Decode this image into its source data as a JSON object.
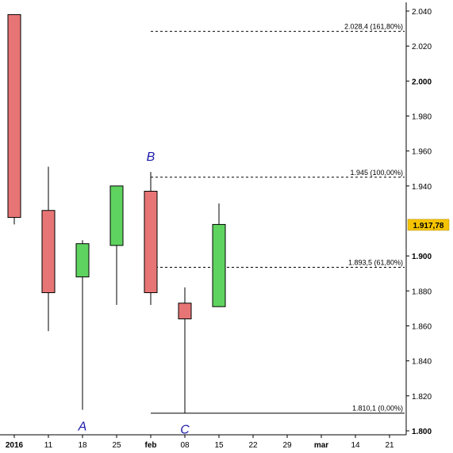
{
  "chart_data": {
    "type": "candlestick",
    "title": "",
    "xlabel": "",
    "ylabel": "",
    "ylim": [
      1.795,
      2.045
    ],
    "grid": false,
    "y_ticks": [
      {
        "value": 2.04,
        "label": "2.040"
      },
      {
        "value": 2.02,
        "label": "2.020"
      },
      {
        "value": 2.0,
        "label": "2.000"
      },
      {
        "value": 1.98,
        "label": "1.980"
      },
      {
        "value": 1.96,
        "label": "1.960"
      },
      {
        "value": 1.94,
        "label": "1.940"
      },
      {
        "value": 1.9,
        "label": "1.900"
      },
      {
        "value": 1.88,
        "label": "1.880"
      },
      {
        "value": 1.86,
        "label": "1.860"
      },
      {
        "value": 1.84,
        "label": "1.840"
      },
      {
        "value": 1.82,
        "label": "1.820"
      },
      {
        "value": 1.8,
        "label": "1.800"
      }
    ],
    "x_ticks": [
      {
        "index": 0,
        "label": "2016",
        "bold": true
      },
      {
        "index": 1,
        "label": "11",
        "bold": false
      },
      {
        "index": 2,
        "label": "18",
        "bold": false
      },
      {
        "index": 3,
        "label": "25",
        "bold": false
      },
      {
        "index": 4,
        "label": "feb",
        "bold": true
      },
      {
        "index": 5,
        "label": "08",
        "bold": false
      },
      {
        "index": 6,
        "label": "15",
        "bold": false
      },
      {
        "index": 7,
        "label": "22",
        "bold": false
      },
      {
        "index": 8,
        "label": "29",
        "bold": false
      },
      {
        "index": 9,
        "label": "mar",
        "bold": true
      },
      {
        "index": 10,
        "label": "14",
        "bold": false
      },
      {
        "index": 11,
        "label": "21",
        "bold": false
      }
    ],
    "candles": [
      {
        "index": 0,
        "open": 2.038,
        "high": 2.038,
        "low": 1.918,
        "close": 1.922
      },
      {
        "index": 1,
        "open": 1.926,
        "high": 1.951,
        "low": 1.857,
        "close": 1.879
      },
      {
        "index": 2,
        "open": 1.888,
        "high": 1.909,
        "low": 1.812,
        "close": 1.907
      },
      {
        "index": 3,
        "open": 1.906,
        "high": 1.94,
        "low": 1.872,
        "close": 1.94
      },
      {
        "index": 4,
        "open": 1.937,
        "high": 1.948,
        "low": 1.872,
        "close": 1.879
      },
      {
        "index": 5,
        "open": 1.873,
        "high": 1.882,
        "low": 1.8101,
        "close": 1.864
      },
      {
        "index": 6,
        "open": 1.871,
        "high": 1.93,
        "low": 1.871,
        "close": 1.918
      }
    ],
    "colors": {
      "up": "#5fd35f",
      "down": "#e87575",
      "outline": "#000000"
    },
    "levels": [
      {
        "value": 2.0284,
        "label": "2.028,4 (161,80%)",
        "style": "dashed",
        "from_index": 4
      },
      {
        "value": 1.945,
        "label": "1.945 (100,00%)",
        "style": "dashed",
        "from_index": 4
      },
      {
        "value": 1.8935,
        "label": "1.893,5 (61,80%)",
        "style": "dashed",
        "from_index": 4
      },
      {
        "value": 1.8101,
        "label": "1.810,1 (0,00%)",
        "style": "solid",
        "from_index": 4
      }
    ],
    "points": [
      {
        "label": "A",
        "index": 2,
        "value": 1.812,
        "placement": "below"
      },
      {
        "label": "B",
        "index": 4,
        "value": 1.948,
        "placement": "above"
      },
      {
        "label": "C",
        "index": 5,
        "value": 1.8101,
        "placement": "below"
      }
    ],
    "last_price": {
      "value": 1.91778,
      "label": "1.917,78",
      "color": "#f5c400"
    }
  }
}
